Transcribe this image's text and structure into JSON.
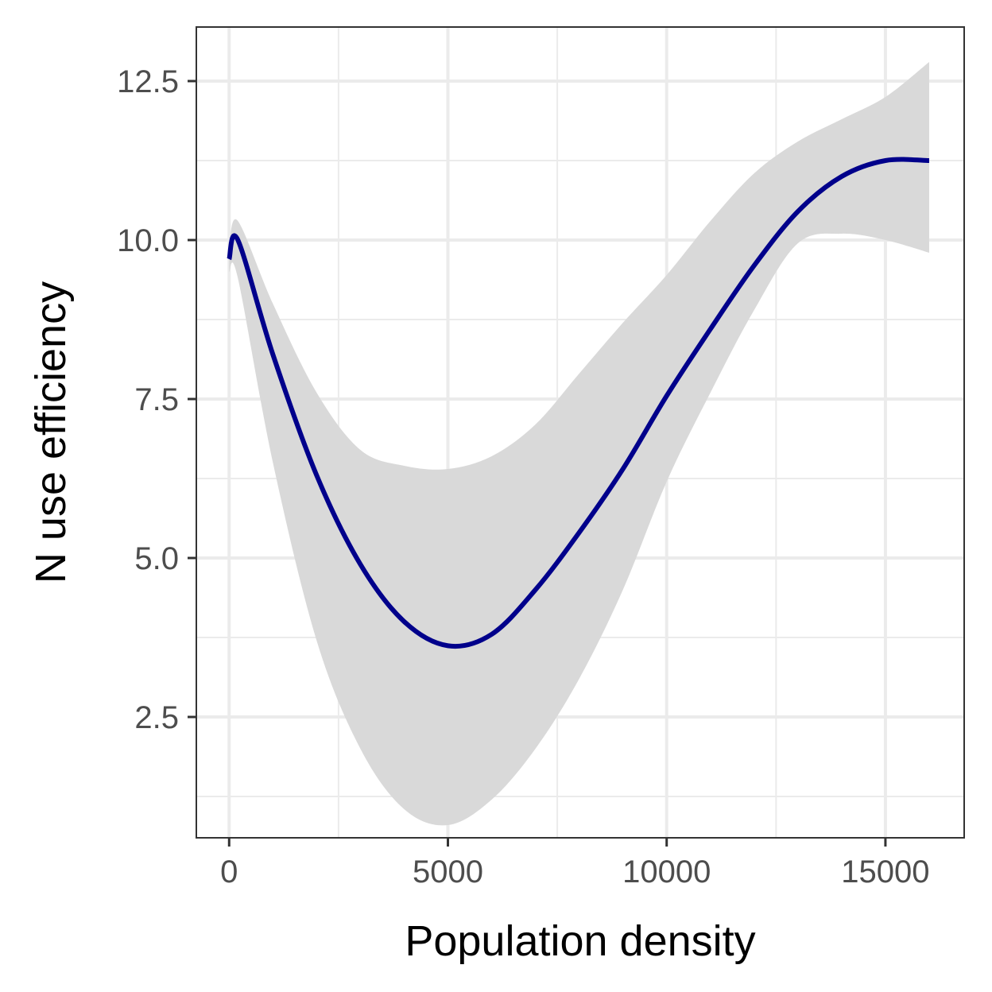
{
  "chart_data": {
    "type": "line",
    "title": "",
    "xlabel": "Population density",
    "ylabel": "N use efficiency",
    "xlim": [
      -750,
      16800
    ],
    "ylim": [
      0.6,
      13.35
    ],
    "x_ticks": [
      0,
      5000,
      10000,
      15000
    ],
    "x_tick_labels": [
      "0",
      "5000",
      "10000",
      "15000"
    ],
    "y_ticks": [
      2.5,
      5.0,
      7.5,
      10.0,
      12.5
    ],
    "y_tick_labels": [
      "2.5",
      "5.0",
      "7.5",
      "10.0",
      "12.5"
    ],
    "grid": true,
    "legend": "none",
    "series": [
      {
        "x": [
          0,
          200,
          1000,
          2000,
          3000,
          4000,
          5000,
          6000,
          7000,
          8000,
          9000,
          10000,
          11000,
          12000,
          13000,
          14000,
          15000,
          16000
        ],
        "y": [
          9.7,
          10.0,
          8.2,
          6.3,
          4.9,
          4.0,
          3.62,
          3.8,
          4.5,
          5.4,
          6.4,
          7.55,
          8.6,
          9.6,
          10.45,
          11.0,
          11.25,
          11.25
        ],
        "lower": [
          9.5,
          9.4,
          6.5,
          3.7,
          2.0,
          1.05,
          0.8,
          1.2,
          2.0,
          3.1,
          4.5,
          6.2,
          7.6,
          8.9,
          9.95,
          10.1,
          10.0,
          9.8
        ],
        "upper": [
          9.9,
          10.3,
          9.0,
          7.6,
          6.7,
          6.45,
          6.4,
          6.6,
          7.1,
          7.9,
          8.7,
          9.45,
          10.3,
          11.05,
          11.55,
          11.9,
          12.25,
          12.8
        ],
        "color": "#00008b",
        "band_color": "#d9d9d9"
      }
    ]
  }
}
